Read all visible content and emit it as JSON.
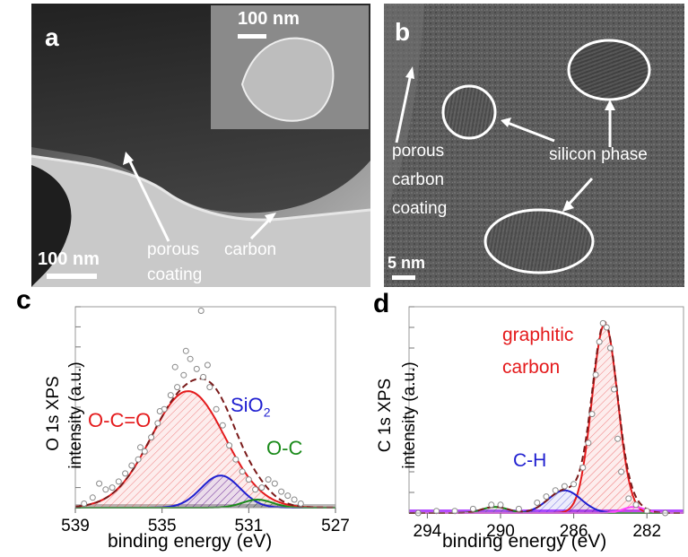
{
  "panels": {
    "a": {
      "letter": "a",
      "scale_main": "100 nm",
      "scale_inset": "100 nm",
      "label_porous": "porous",
      "label_carbon": "carbon",
      "label_coating": "coating"
    },
    "b": {
      "letter": "b",
      "scale": "5 nm",
      "label_porous": "porous",
      "label_carbon": "carbon",
      "label_coating": "coating",
      "label_silicon": "silicon phase"
    },
    "c": {
      "letter": "c",
      "ylabel_line1": "O 1s XPS",
      "ylabel_line2": "intensity (a.u.)",
      "xlabel": "binding energy (eV)",
      "label_oco": "O-C=O",
      "label_sio2_main": "SiO",
      "label_sio2_sub": "2",
      "label_oc": "O-C"
    },
    "d": {
      "letter": "d",
      "ylabel_line1": "C 1s XPS",
      "ylabel_line2": "intensity (a.u.)",
      "xlabel": "binding energy (eV)",
      "label_graphitic": "graphitic",
      "label_carbon": "carbon",
      "label_ch": "C-H"
    }
  },
  "chart_data": [
    {
      "type": "line",
      "panel": "c",
      "xlabel": "binding energy (eV)",
      "ylabel": "O 1s XPS intensity (a.u.)",
      "xlim": [
        539,
        527
      ],
      "x_ticks": [
        "539",
        "535",
        "531",
        "527"
      ],
      "ylim": [
        0,
        1.0
      ],
      "y_ticks_shown": false,
      "series": [
        {
          "name": "O-C=O",
          "color": "#e41a1c",
          "center": 533.8,
          "height": 0.58,
          "width": 1.7
        },
        {
          "name": "SiO2",
          "color": "#1f1fd0",
          "center": 532.3,
          "height": 0.16,
          "width": 0.9
        },
        {
          "name": "O-C",
          "color": "#1a8a1a",
          "center": 530.6,
          "height": 0.04,
          "width": 0.7
        }
      ],
      "raw_points": [
        [
          538.6,
          0.02
        ],
        [
          538.2,
          0.05
        ],
        [
          537.9,
          0.12
        ],
        [
          537.6,
          0.09
        ],
        [
          537.3,
          0.1
        ],
        [
          537.0,
          0.13
        ],
        [
          536.7,
          0.17
        ],
        [
          536.4,
          0.21
        ],
        [
          536.1,
          0.24
        ],
        [
          535.8,
          0.28
        ],
        [
          535.5,
          0.35
        ],
        [
          535.2,
          0.42
        ],
        [
          534.9,
          0.49
        ],
        [
          534.6,
          0.56
        ],
        [
          534.3,
          0.6
        ],
        [
          534.0,
          0.66
        ],
        [
          533.7,
          0.74
        ],
        [
          533.4,
          0.69
        ],
        [
          533.1,
          0.65
        ],
        [
          532.8,
          0.6
        ],
        [
          532.5,
          0.49
        ],
        [
          532.2,
          0.41
        ],
        [
          531.9,
          0.31
        ],
        [
          531.6,
          0.24
        ],
        [
          531.3,
          0.18
        ],
        [
          531.0,
          0.14
        ],
        [
          530.7,
          0.09
        ],
        [
          530.4,
          0.1
        ],
        [
          530.1,
          0.14
        ],
        [
          529.8,
          0.12
        ],
        [
          529.5,
          0.08
        ],
        [
          529.2,
          0.06
        ],
        [
          528.9,
          0.04
        ],
        [
          528.6,
          0.02
        ],
        [
          533.2,
          0.98
        ],
        [
          533.9,
          0.78
        ],
        [
          534.4,
          0.7
        ],
        [
          532.9,
          0.71
        ],
        [
          535.1,
          0.48
        ],
        [
          536.0,
          0.3
        ]
      ],
      "annotations": [
        "O-C=O",
        "SiO2",
        "O-C"
      ]
    },
    {
      "type": "line",
      "panel": "d",
      "xlabel": "binding energy (eV)",
      "ylabel": "C 1s XPS intensity (a.u.)",
      "xlim": [
        295,
        280
      ],
      "x_ticks": [
        "294",
        "290",
        "286",
        "282"
      ],
      "ylim": [
        0,
        1.0
      ],
      "y_ticks_shown": false,
      "series": [
        {
          "name": "graphitic carbon",
          "color": "#e41a1c",
          "center": 284.3,
          "height": 0.92,
          "width": 0.7
        },
        {
          "name": "C-H",
          "color": "#1f1fd0",
          "center": 286.5,
          "height": 0.11,
          "width": 0.9
        },
        {
          "name": "",
          "color": "#1a8a1a",
          "center": 290.3,
          "height": 0.03,
          "width": 0.7
        },
        {
          "name": "",
          "color": "#ff44ff",
          "center": 282.7,
          "height": 0.03,
          "width": 0.6
        }
      ],
      "raw_points": [
        [
          294.5,
          0.0
        ],
        [
          293.5,
          0.01
        ],
        [
          292.5,
          0.01
        ],
        [
          291.5,
          0.02
        ],
        [
          290.5,
          0.04
        ],
        [
          290.0,
          0.04
        ],
        [
          289.0,
          0.02
        ],
        [
          288.0,
          0.05
        ],
        [
          287.5,
          0.08
        ],
        [
          287.0,
          0.11
        ],
        [
          286.5,
          0.13
        ],
        [
          286.0,
          0.14
        ],
        [
          285.5,
          0.22
        ],
        [
          285.2,
          0.34
        ],
        [
          285.0,
          0.48
        ],
        [
          284.8,
          0.67
        ],
        [
          284.6,
          0.83
        ],
        [
          284.4,
          0.92
        ],
        [
          284.2,
          0.9
        ],
        [
          284.0,
          0.8
        ],
        [
          283.8,
          0.6
        ],
        [
          283.6,
          0.36
        ],
        [
          283.4,
          0.2
        ],
        [
          283.0,
          0.07
        ],
        [
          282.6,
          0.04
        ],
        [
          282.0,
          0.01
        ],
        [
          281.0,
          0.0
        ]
      ],
      "annotations": [
        "graphitic carbon",
        "C-H"
      ]
    }
  ]
}
